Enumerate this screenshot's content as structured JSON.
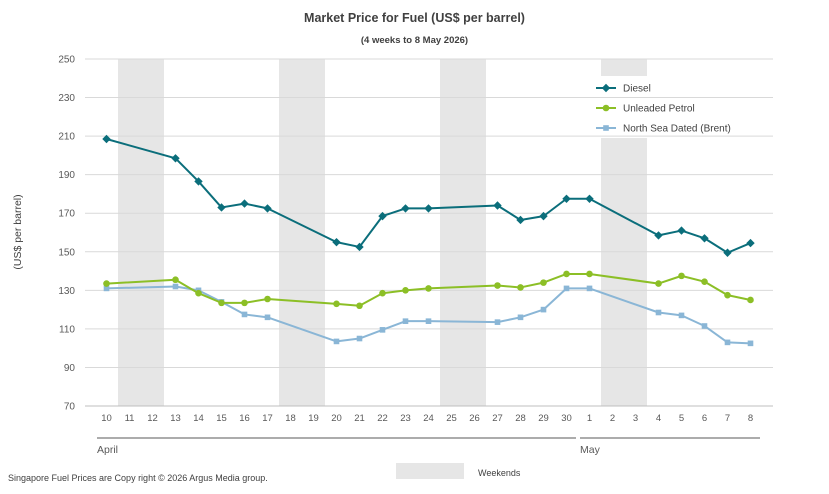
{
  "chart_data": {
    "type": "line",
    "title": "Market Price for Fuel (US$ per barrel)",
    "subtitle": "(4 weeks to 8 May 2026)",
    "ylabel": "(US$ per barrel)",
    "xlabel": "",
    "ylim": [
      70,
      250
    ],
    "yticks": [
      70,
      90,
      110,
      130,
      150,
      170,
      190,
      210,
      230,
      250
    ],
    "grid": true,
    "legend_position": "top-right",
    "categories": [
      "10",
      "11",
      "12",
      "13",
      "14",
      "15",
      "16",
      "17",
      "18",
      "19",
      "20",
      "21",
      "22",
      "23",
      "24",
      "25",
      "26",
      "27",
      "28",
      "29",
      "30",
      "1",
      "2",
      "3",
      "4",
      "5",
      "6",
      "7",
      "8"
    ],
    "months": [
      {
        "label": "April",
        "from": "10",
        "to": "30"
      },
      {
        "label": "May",
        "from": "1",
        "to": "8"
      }
    ],
    "weekend_bands": [
      [
        "11",
        "12"
      ],
      [
        "18",
        "19"
      ],
      [
        "25",
        "26"
      ],
      [
        "2",
        "3"
      ]
    ],
    "weekend_label": "Weekends",
    "series": [
      {
        "name": "Diesel",
        "color": "#0b6e7b",
        "marker": "diamond",
        "values": [
          208.5,
          null,
          null,
          198.5,
          186.5,
          173,
          175,
          172.5,
          null,
          null,
          155,
          152.5,
          168.5,
          172.5,
          172.5,
          null,
          null,
          174,
          166.5,
          168.5,
          177.5,
          177.5,
          null,
          null,
          158.5,
          161,
          157,
          149.5,
          154.5
        ]
      },
      {
        "name": "Unleaded Petrol",
        "color": "#8cbf26",
        "marker": "circle",
        "values": [
          133.5,
          null,
          null,
          135.5,
          128.5,
          123.5,
          123.5,
          125.5,
          null,
          null,
          123,
          122,
          128.5,
          130,
          131,
          null,
          null,
          132.5,
          131.5,
          134,
          138.5,
          138.5,
          null,
          null,
          133.5,
          137.5,
          134.5,
          127.5,
          125
        ]
      },
      {
        "name": "North Sea Dated (Brent)",
        "color": "#8ab6d6",
        "marker": "square",
        "values": [
          131,
          null,
          null,
          132,
          130,
          124,
          117.5,
          116,
          null,
          null,
          103.5,
          105,
          109.5,
          114,
          114,
          null,
          null,
          113.5,
          116,
          120,
          131,
          131,
          null,
          null,
          118.5,
          117,
          111.5,
          103,
          102.5
        ]
      }
    ]
  },
  "footer": "Singapore  Fuel Prices are  Copy right © 2026 Argus Media  group."
}
